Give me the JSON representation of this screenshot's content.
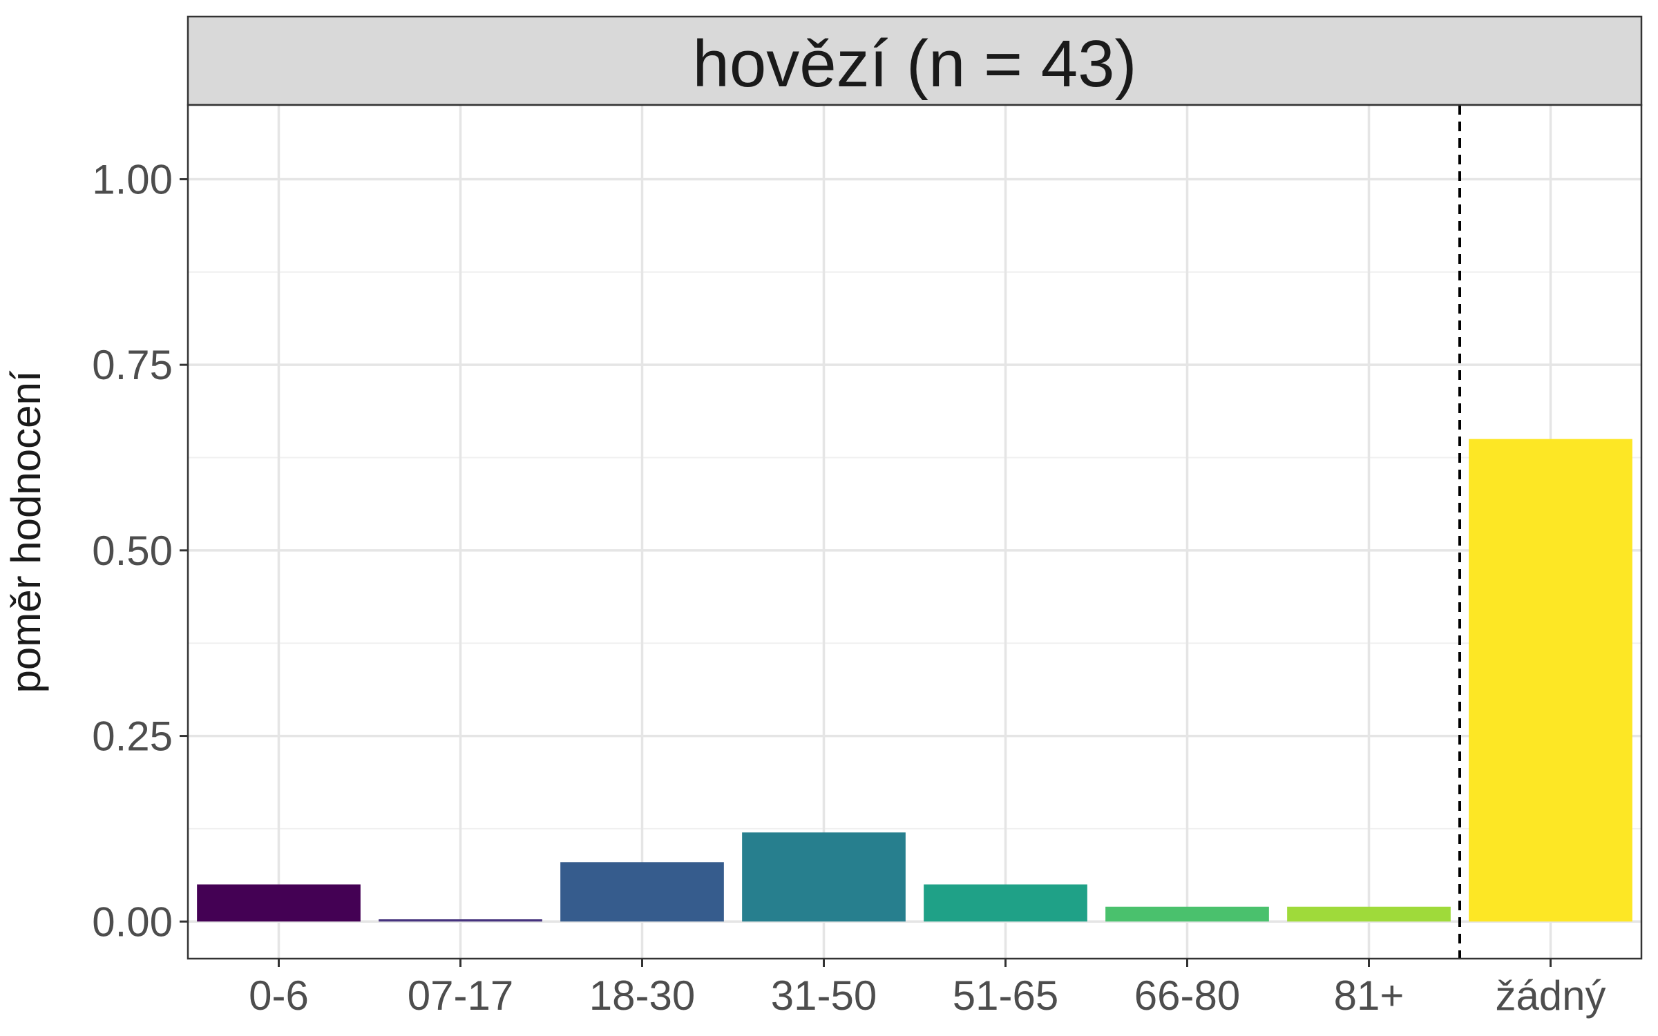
{
  "chart_data": {
    "type": "bar",
    "panel_title": "hovězí (n = 43)",
    "xlabel": "",
    "ylabel": "poměr hodnocení",
    "categories": [
      "0-6",
      "07-17",
      "18-30",
      "31-50",
      "51-65",
      "66-80",
      "81+",
      "žádný"
    ],
    "values": [
      0.05,
      0.003,
      0.08,
      0.12,
      0.05,
      0.02,
      0.02,
      0.65
    ],
    "colors": [
      "#440154",
      "#46337E",
      "#365C8D",
      "#277F8E",
      "#1FA187",
      "#4AC16D",
      "#9FDA3A",
      "#FDE725"
    ],
    "ylim": [
      -0.05,
      1.1
    ],
    "yticks": [
      0,
      0.25,
      0.5,
      0.75,
      1
    ],
    "ytick_labels": [
      "0.00",
      "0.25",
      "0.50",
      "0.75",
      "1.00"
    ],
    "reference_line": {
      "style": "dashed",
      "between": [
        "81+",
        "žádný"
      ]
    },
    "grid": true,
    "legend": "none"
  }
}
